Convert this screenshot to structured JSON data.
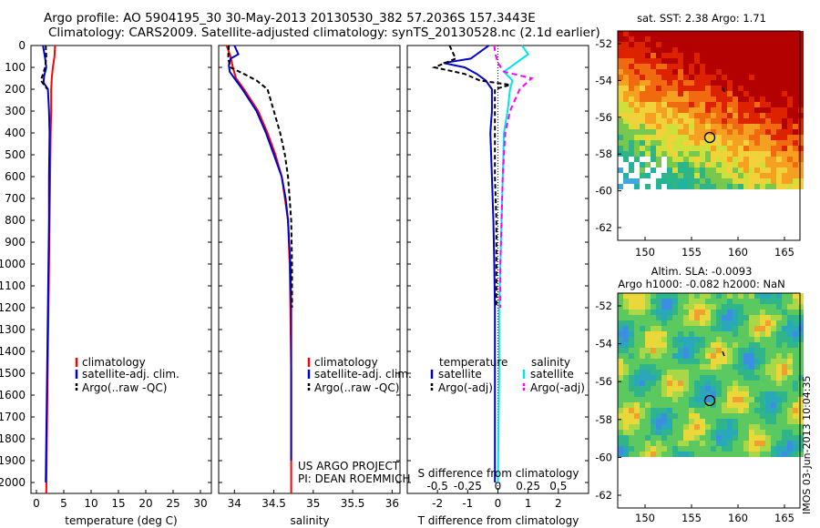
{
  "header": {
    "line1": "Argo profile: AO 5904195_30 30-May-2013 20130530_382 57.2036S 157.3443E",
    "line2": "Climatology: CARS2009. Satellite-adjusted climatology: synTS_20130528.nc (2.1d earlier)"
  },
  "colors": {
    "climatology": "#ff0000",
    "satellite": "#0000cc",
    "argo": "#000000",
    "sal_satellite": "#00e5e5",
    "sal_argo": "#ff00ff"
  },
  "depth_axis": {
    "ticks": [
      "0",
      "100",
      "200",
      "300",
      "400",
      "500",
      "600",
      "700",
      "800",
      "900",
      "1000",
      "1100",
      "1200",
      "1300",
      "1400",
      "1500",
      "1600",
      "1700",
      "1800",
      "1900",
      "2000"
    ],
    "range": [
      0,
      2050
    ]
  },
  "legend": {
    "climatology": "climatology",
    "satellite_adj": "satellite-adj. clim.",
    "argo": "Argo(..raw -QC)"
  },
  "diff_legend": {
    "temperature": "temperature",
    "salinity": "salinity",
    "satellite": "satellite",
    "argo_adj": "Argo(-adj)"
  },
  "project": {
    "line1": "US ARGO PROJECT",
    "line2": "PI: DEAN ROEMMICH"
  },
  "maps": {
    "sst_title": "sat. SST: 2.38 Argo: 1.71",
    "sla_title1": "Altim. SLA: -0.0093",
    "sla_title2": "Argo h1000: -0.082 h2000: NaN",
    "lat_ticks": [
      "-52",
      "-54",
      "-56",
      "-58",
      "-60",
      "-62"
    ],
    "lon_ticks": [
      "150",
      "155",
      "160",
      "165"
    ],
    "timestamp": "IMOS 03-Jun-2013 10:04:35"
  },
  "chart_data": [
    {
      "type": "line",
      "panel": "temperature",
      "xlabel": "temperature (deg C)",
      "ylabel": "",
      "xlim": [
        -1,
        32
      ],
      "ylim": [
        2050,
        0
      ],
      "x_ticks": [
        "0",
        "5",
        "10",
        "15",
        "20",
        "25",
        "30"
      ],
      "x_tick_values": [
        0,
        5,
        10,
        15,
        20,
        25,
        30
      ],
      "series": [
        {
          "name": "climatology",
          "color": "#ff0000",
          "dash": "",
          "depth": [
            0,
            50,
            100,
            150,
            200,
            300,
            400,
            600,
            800,
            1000,
            1200,
            1400,
            1600,
            1800,
            2050
          ],
          "values": [
            3.4,
            3.3,
            3.0,
            2.8,
            2.7,
            2.7,
            2.6,
            2.5,
            2.4,
            2.3,
            2.2,
            2.1,
            2.0,
            1.9,
            1.8
          ]
        },
        {
          "name": "satellite-adj. clim.",
          "color": "#0000cc",
          "dash": "",
          "depth": [
            0,
            30,
            60,
            100,
            140,
            170,
            200,
            300,
            400,
            600,
            800,
            1000,
            1200,
            1400,
            1600,
            1800,
            2000
          ],
          "values": [
            1.2,
            1.4,
            1.6,
            1.8,
            1.4,
            1.3,
            2.1,
            2.3,
            2.4,
            2.3,
            2.3,
            2.2,
            2.1,
            2.0,
            1.9,
            1.8,
            1.7
          ]
        },
        {
          "name": "Argo(..raw -QC)",
          "color": "#000000",
          "dash": "5,3",
          "depth": [
            0,
            50,
            100,
            130,
            160,
            180,
            200
          ],
          "values": [
            1.7,
            1.8,
            1.6,
            1.2,
            0.8,
            1.4,
            2.0
          ]
        }
      ]
    },
    {
      "type": "line",
      "panel": "salinity",
      "xlabel": "salinity",
      "ylabel": "",
      "xlim": [
        33.8,
        36.1
      ],
      "ylim": [
        2050,
        0
      ],
      "x_ticks": [
        "34",
        "34.5",
        "35",
        "35.5",
        "36"
      ],
      "x_tick_values": [
        34,
        34.5,
        35,
        35.5,
        36
      ],
      "series": [
        {
          "name": "climatology",
          "color": "#ff0000",
          "dash": "",
          "depth": [
            0,
            50,
            100,
            150,
            200,
            300,
            400,
            500,
            600,
            700,
            800,
            1000,
            1200,
            1500,
            2050
          ],
          "values": [
            33.9,
            33.95,
            33.98,
            34.02,
            34.12,
            34.3,
            34.42,
            34.52,
            34.6,
            34.64,
            34.68,
            34.7,
            34.71,
            34.72,
            34.72
          ]
        },
        {
          "name": "satellite-adj. clim.",
          "color": "#0000cc",
          "dash": "",
          "depth": [
            0,
            40,
            60,
            90,
            120,
            150,
            200,
            300,
            400,
            500,
            600,
            700,
            800,
            1000,
            1200,
            1500,
            1900
          ],
          "values": [
            34.0,
            34.05,
            33.95,
            33.93,
            33.94,
            34.0,
            34.1,
            34.28,
            34.4,
            34.5,
            34.6,
            34.65,
            34.68,
            34.71,
            34.72,
            34.72,
            34.72
          ]
        },
        {
          "name": "Argo(..raw -QC)",
          "color": "#000000",
          "dash": "5,3",
          "depth": [
            0,
            60,
            100,
            130,
            160,
            200,
            300,
            400,
            500,
            600,
            700,
            800,
            1000,
            1200
          ],
          "values": [
            33.93,
            33.92,
            33.95,
            34.12,
            34.28,
            34.42,
            34.5,
            34.58,
            34.64,
            34.68,
            34.7,
            34.72,
            34.73,
            34.73
          ]
        }
      ]
    },
    {
      "type": "line",
      "panel": "difference",
      "xlabel": "T difference from climatology",
      "xlabel2": "S difference from climatology",
      "ylabel": "",
      "xlim": [
        -3,
        3
      ],
      "ylim": [
        2050,
        0
      ],
      "x_ticks": [
        "-2",
        "-1",
        "0",
        "1",
        "2"
      ],
      "x_tick_values": [
        -2,
        -1,
        0,
        1,
        2
      ],
      "s_ticks": [
        "-0.5",
        "-0.25",
        "0",
        "0.25",
        "0.5"
      ],
      "s_tick_values": [
        -0.5,
        -0.25,
        0,
        0.25,
        0.5
      ],
      "series": [
        {
          "name": "temperature satellite",
          "axis": "T",
          "color": "#0000cc",
          "dash": "",
          "depth": [
            0,
            60,
            80,
            100,
            130,
            160,
            200,
            300,
            400,
            600,
            800,
            1000,
            1200,
            1500,
            2000
          ],
          "values": [
            -0.3,
            -0.9,
            -1.8,
            -1.1,
            -0.7,
            -0.4,
            -0.2,
            -0.2,
            -0.25,
            -0.2,
            -0.15,
            -0.12,
            -0.1,
            -0.1,
            -0.1
          ]
        },
        {
          "name": "temperature Argo(-adj)",
          "axis": "T",
          "color": "#000000",
          "dash": "5,3",
          "depth": [
            0,
            60,
            100,
            130,
            160,
            180,
            200,
            300,
            400,
            600,
            800,
            1000,
            1200
          ],
          "values": [
            -1.6,
            -1.4,
            -2.1,
            -1.1,
            -0.6,
            0.4,
            -0.1,
            -0.1,
            -0.1,
            -0.1,
            -0.05,
            -0.05,
            -0.05
          ]
        },
        {
          "name": "salinity satellite",
          "axis": "S",
          "color": "#00e5e5",
          "dash": "",
          "depth": [
            0,
            40,
            80,
            120,
            160,
            200,
            300,
            400,
            600,
            800,
            1000,
            1200,
            1500,
            2000
          ],
          "values": [
            0.2,
            0.25,
            0.15,
            0.05,
            0.12,
            0.1,
            0.08,
            0.05,
            0.04,
            0.03,
            0.02,
            0.01,
            0.01,
            0.0
          ]
        },
        {
          "name": "salinity Argo(-adj)",
          "axis": "S",
          "color": "#ff00ff",
          "dash": "6,4",
          "depth": [
            0,
            40,
            80,
            120,
            150,
            200,
            300,
            400,
            600,
            800,
            1000,
            1200
          ],
          "values": [
            -0.03,
            -0.02,
            0.0,
            0.05,
            0.28,
            0.18,
            0.1,
            0.06,
            0.04,
            0.03,
            0.02,
            0.02
          ]
        }
      ]
    }
  ]
}
